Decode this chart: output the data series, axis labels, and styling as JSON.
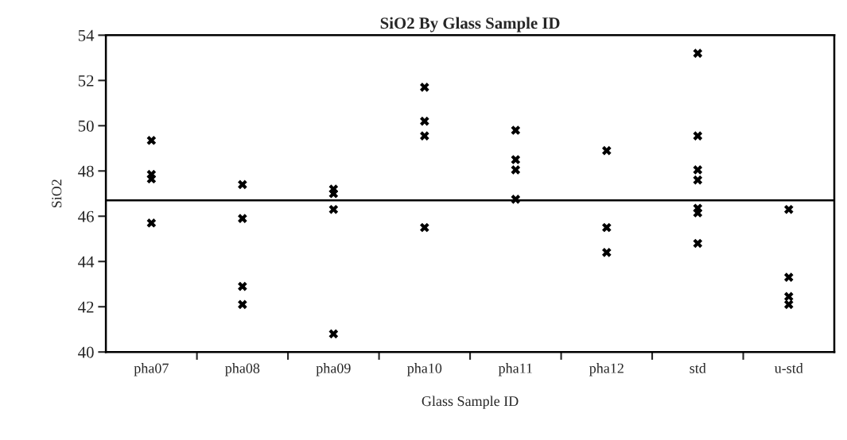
{
  "chart_data": {
    "type": "scatter",
    "title": "SiO2 By Glass Sample ID",
    "xlabel": "Glass Sample ID",
    "ylabel": "SiO2",
    "categories": [
      "pha07",
      "pha08",
      "pha09",
      "pha10",
      "pha11",
      "pha12",
      "std",
      "u-std"
    ],
    "series": [
      {
        "color": "#000000",
        "x": [
          "pha07",
          "pha07",
          "pha07",
          "pha07",
          "pha08",
          "pha08",
          "pha08",
          "pha08",
          "pha09",
          "pha09",
          "pha09",
          "pha09",
          "pha10",
          "pha10",
          "pha10",
          "pha10",
          "pha11",
          "pha11",
          "pha11",
          "pha11",
          "pha12",
          "pha12",
          "pha12",
          "std",
          "std",
          "std",
          "std",
          "std",
          "std",
          "std",
          "u-std",
          "u-std",
          "u-std",
          "u-std"
        ],
        "values": [
          49.35,
          47.85,
          47.65,
          45.7,
          47.4,
          45.9,
          42.9,
          42.1,
          47.2,
          47.0,
          46.3,
          40.8,
          51.7,
          50.2,
          49.55,
          45.5,
          49.8,
          48.5,
          48.05,
          46.75,
          48.9,
          45.5,
          44.4,
          53.2,
          49.55,
          48.05,
          47.6,
          46.35,
          46.15,
          44.8,
          46.3,
          43.3,
          42.45,
          42.1
        ]
      }
    ],
    "ylim": [
      40,
      54
    ],
    "yticks": [
      40,
      42,
      44,
      46,
      48,
      50,
      52,
      54
    ],
    "ref_lines": [
      {
        "axis": "y",
        "value": 46.7,
        "color": "#000000",
        "line_style": "solid"
      }
    ],
    "marker": "cross",
    "grid": false,
    "legend": false
  }
}
